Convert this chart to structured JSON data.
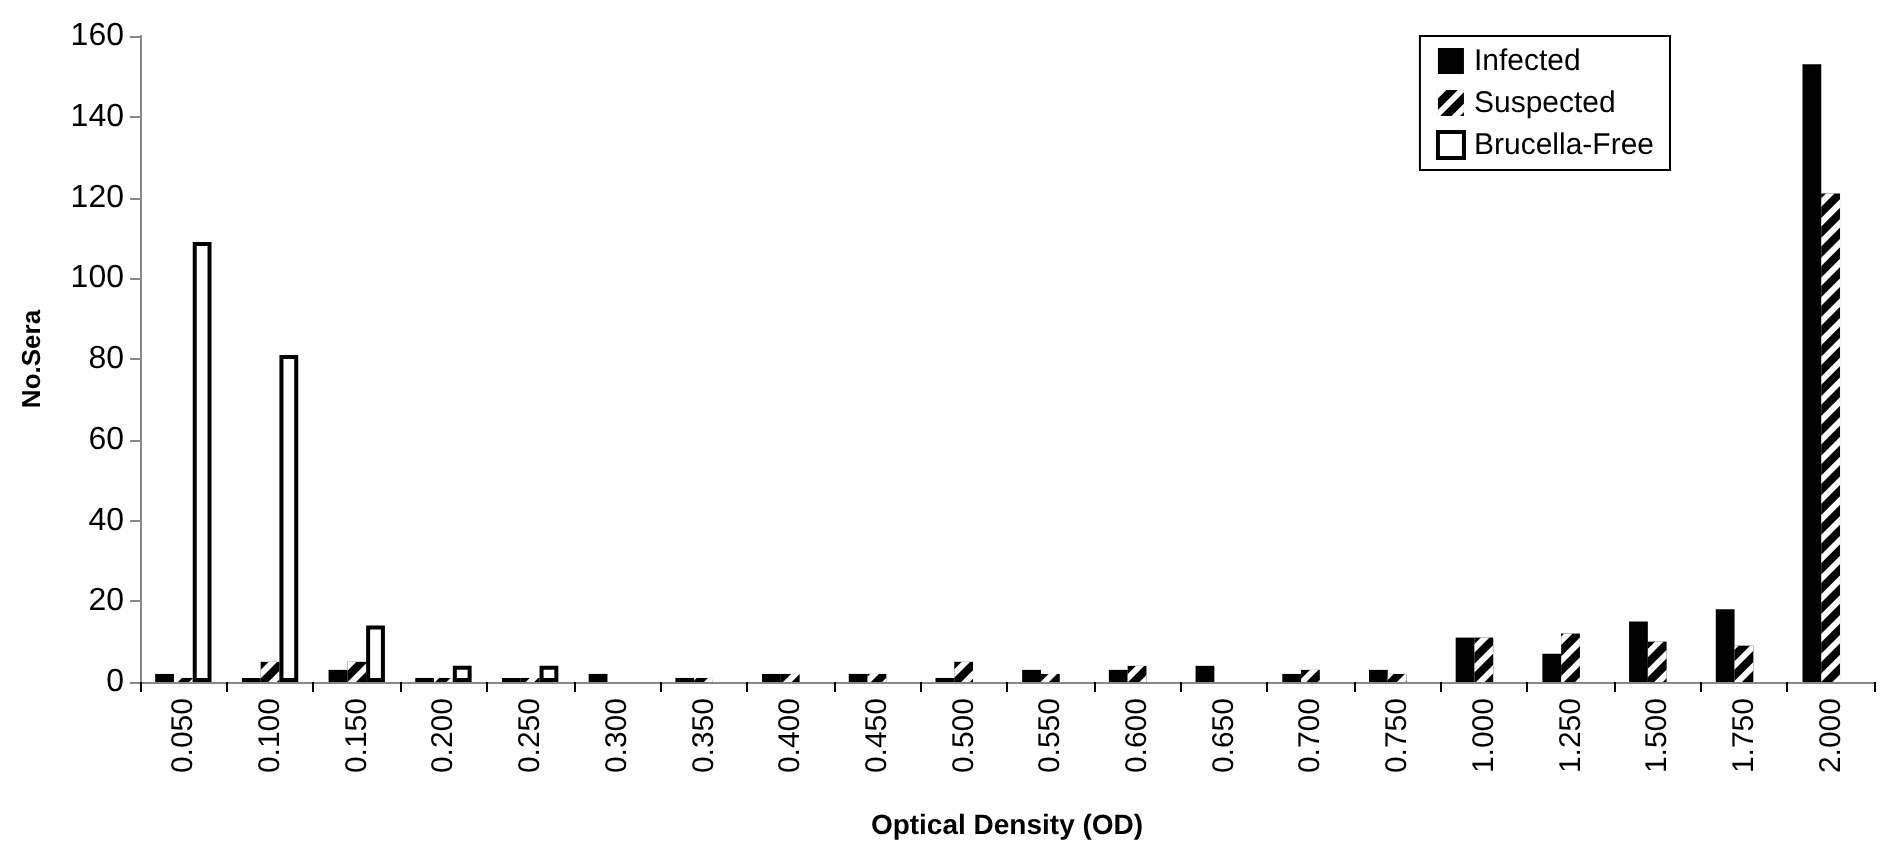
{
  "chart_data": {
    "type": "bar",
    "xlabel": "Optical Density (OD)",
    "ylabel": "No.Sera",
    "categories": [
      "0.050",
      "0.100",
      "0.150",
      "0.200",
      "0.250",
      "0.300",
      "0.350",
      "0.400",
      "0.450",
      "0.500",
      "0.550",
      "0.600",
      "0.650",
      "0.700",
      "0.750",
      "1.000",
      "1.250",
      "1.500",
      "1.750",
      "2.000"
    ],
    "series": [
      {
        "name": "Infected",
        "color": "#000000",
        "values": [
          2,
          1,
          3,
          1,
          1,
          2,
          1,
          2,
          2,
          1,
          3,
          3,
          4,
          2,
          3,
          11,
          7,
          15,
          18,
          153
        ]
      },
      {
        "name": "Suspected",
        "color": "#000000",
        "values": [
          1,
          5,
          5,
          1,
          1,
          0,
          1,
          2,
          2,
          5,
          2,
          4,
          0,
          3,
          2,
          11,
          12,
          10,
          9,
          121
        ]
      },
      {
        "name": "Brucella-Free",
        "color": "#ffffff",
        "values": [
          109,
          81,
          14,
          4,
          4,
          0,
          0,
          0,
          0,
          0,
          0,
          0,
          0,
          0,
          0,
          0,
          0,
          0,
          0,
          0
        ]
      }
    ],
    "ylim": [
      0,
      160
    ],
    "yticks": [
      0,
      20,
      40,
      60,
      80,
      100,
      120,
      140,
      160
    ],
    "grid": false,
    "legend": "top right"
  }
}
